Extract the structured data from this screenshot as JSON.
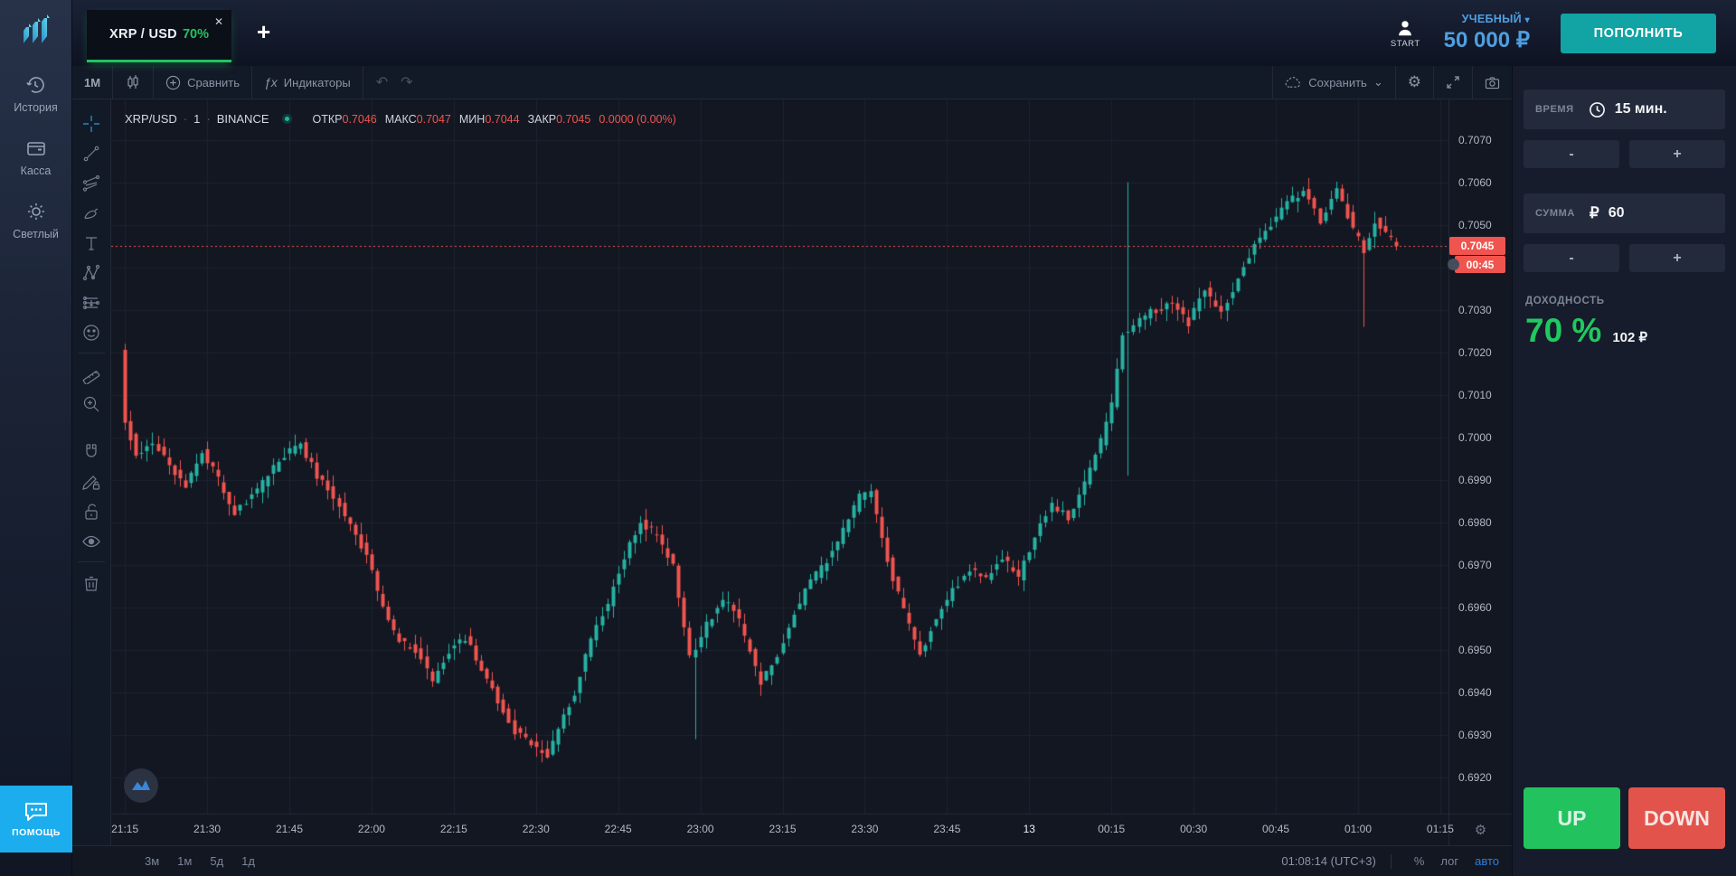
{
  "icons": {
    "close": "✕",
    "plus": "+",
    "caret_down": "▾",
    "chevron_down": "⌄",
    "gear": "⚙",
    "undo": "↶",
    "redo": "↷",
    "fx": "ƒx",
    "dot_sep": "·",
    "ruble": "₽"
  },
  "topbar": {
    "tab": {
      "pair": "XRP / USD",
      "payout": "70%"
    },
    "start_label": "START",
    "account_type": "УЧЕБНЫЙ",
    "balance": "50 000 ₽",
    "deposit": "ПОПОЛНИТЬ"
  },
  "sidebar": {
    "items": [
      {
        "label": "История"
      },
      {
        "label": "Касса"
      },
      {
        "label": "Светлый"
      }
    ],
    "help": "ПОМОЩЬ"
  },
  "chart_toolbar": {
    "interval": "1М",
    "compare": "Сравнить",
    "indicators": "Индикаторы",
    "save": "Сохранить"
  },
  "legend": {
    "symbol": "XRP/USD",
    "interval": "1",
    "exchange": "BINANCE",
    "open_label": "ОТКР",
    "open": "0.7046",
    "high_label": "МАКС",
    "high": "0.7047",
    "low_label": "МИН",
    "low": "0.7044",
    "close_label": "ЗАКР",
    "close": "0.7045",
    "change": "0.0000 (0.00%)"
  },
  "price_tag": {
    "value": "0.7045",
    "countdown": "00:45"
  },
  "bottom_bar": {
    "ranges": [
      "3м",
      "1м",
      "5д",
      "1д"
    ],
    "clock": "01:08:14 (UTC+3)",
    "percent": "%",
    "log": "лог",
    "auto": "авто"
  },
  "trade_panel": {
    "time_label": "ВРЕМЯ",
    "time_value": "15 мин.",
    "amount_label": "СУММА",
    "amount_value": "60",
    "minus": "-",
    "plus": "+",
    "payout_label": "ДОХОДНОСТЬ",
    "payout_percent": "70 %",
    "payout_amount": "102 ₽",
    "up": "UP",
    "down": "DOWN"
  },
  "chart_data": {
    "type": "candlestick",
    "title": "XRP/USD 1m candlestick chart, BINANCE",
    "interval_minutes": 1,
    "colors": {
      "up": "#26b2a2",
      "down": "#f0544e",
      "grid": "#1c2230",
      "bg": "#131722",
      "last_price_line": "#f0544e"
    },
    "axis": {
      "price_top": 0.70795,
      "price_bottom": 0.69115,
      "t_min": -2.5,
      "t_max": 241.5,
      "price_step": 0.001
    },
    "y_ticks": [
      0.707,
      0.706,
      0.705,
      0.704,
      0.703,
      0.702,
      0.701,
      0.7,
      0.699,
      0.698,
      0.697,
      0.696,
      0.695,
      0.694,
      0.693,
      0.692
    ],
    "x_ticks": [
      {
        "t": 0,
        "label": "21:15"
      },
      {
        "t": 15,
        "label": "21:30"
      },
      {
        "t": 30,
        "label": "21:45"
      },
      {
        "t": 45,
        "label": "22:00"
      },
      {
        "t": 60,
        "label": "22:15"
      },
      {
        "t": 75,
        "label": "22:30"
      },
      {
        "t": 90,
        "label": "22:45"
      },
      {
        "t": 105,
        "label": "23:00"
      },
      {
        "t": 120,
        "label": "23:15"
      },
      {
        "t": 135,
        "label": "23:30"
      },
      {
        "t": 150,
        "label": "23:45"
      },
      {
        "t": 165,
        "label": "13",
        "bright": true
      },
      {
        "t": 180,
        "label": "00:15"
      },
      {
        "t": 195,
        "label": "00:30"
      },
      {
        "t": 210,
        "label": "00:45"
      },
      {
        "t": 225,
        "label": "01:00"
      },
      {
        "t": 240,
        "label": "01:15"
      }
    ],
    "last_price": 0.7045,
    "candles_count": 233,
    "seed": 11,
    "waypoints": [
      [
        0,
        0.7021
      ],
      [
        1,
        0.7004
      ],
      [
        3,
        0.6996
      ],
      [
        6,
        0.6999
      ],
      [
        9,
        0.6993
      ],
      [
        12,
        0.6989
      ],
      [
        15,
        0.6997
      ],
      [
        18,
        0.699
      ],
      [
        21,
        0.6982
      ],
      [
        24,
        0.6986
      ],
      [
        27,
        0.6991
      ],
      [
        30,
        0.6996
      ],
      [
        33,
        0.6998
      ],
      [
        36,
        0.6991
      ],
      [
        39,
        0.6986
      ],
      [
        42,
        0.698
      ],
      [
        45,
        0.6972
      ],
      [
        48,
        0.696
      ],
      [
        51,
        0.6952
      ],
      [
        54,
        0.695
      ],
      [
        57,
        0.6943
      ],
      [
        60,
        0.695
      ],
      [
        63,
        0.6953
      ],
      [
        66,
        0.6946
      ],
      [
        69,
        0.6938
      ],
      [
        72,
        0.6931
      ],
      [
        75,
        0.6928
      ],
      [
        78,
        0.6925
      ],
      [
        80,
        0.6931
      ],
      [
        83,
        0.694
      ],
      [
        86,
        0.6953
      ],
      [
        89,
        0.6961
      ],
      [
        92,
        0.6972
      ],
      [
        95,
        0.698
      ],
      [
        98,
        0.6977
      ],
      [
        101,
        0.697
      ],
      [
        104,
        0.6948
      ],
      [
        107,
        0.6956
      ],
      [
        110,
        0.6962
      ],
      [
        113,
        0.6957
      ],
      [
        117,
        0.6942
      ],
      [
        120,
        0.6949
      ],
      [
        123,
        0.6959
      ],
      [
        126,
        0.6966
      ],
      [
        129,
        0.6971
      ],
      [
        132,
        0.6978
      ],
      [
        135,
        0.6986
      ],
      [
        137,
        0.6987
      ],
      [
        140,
        0.6971
      ],
      [
        143,
        0.6959
      ],
      [
        146,
        0.6949
      ],
      [
        149,
        0.6958
      ],
      [
        152,
        0.6964
      ],
      [
        155,
        0.6969
      ],
      [
        158,
        0.6967
      ],
      [
        161,
        0.6972
      ],
      [
        164,
        0.6967
      ],
      [
        167,
        0.6977
      ],
      [
        170,
        0.6984
      ],
      [
        173,
        0.6981
      ],
      [
        176,
        0.6989
      ],
      [
        179,
        0.6999
      ],
      [
        181,
        0.7008
      ],
      [
        183,
        0.7024
      ],
      [
        186,
        0.7028
      ],
      [
        189,
        0.703
      ],
      [
        192,
        0.7032
      ],
      [
        195,
        0.7027
      ],
      [
        198,
        0.7035
      ],
      [
        201,
        0.7029
      ],
      [
        204,
        0.7038
      ],
      [
        207,
        0.7045
      ],
      [
        210,
        0.705
      ],
      [
        213,
        0.7055
      ],
      [
        216,
        0.7058
      ],
      [
        219,
        0.7051
      ],
      [
        222,
        0.7059
      ],
      [
        225,
        0.7049
      ],
      [
        227,
        0.7044
      ],
      [
        229,
        0.7051
      ],
      [
        231,
        0.7048
      ],
      [
        233,
        0.7045
      ]
    ],
    "spikes": [
      {
        "t": 0,
        "high": 0.7022
      },
      {
        "t": 104,
        "low": 0.6929
      },
      {
        "t": 183,
        "high": 0.706,
        "low": 0.6991
      },
      {
        "t": 226,
        "low": 0.7026
      }
    ],
    "last_candle": {
      "open": 0.7046,
      "high": 0.7047,
      "low": 0.7044,
      "close": 0.7045
    }
  }
}
